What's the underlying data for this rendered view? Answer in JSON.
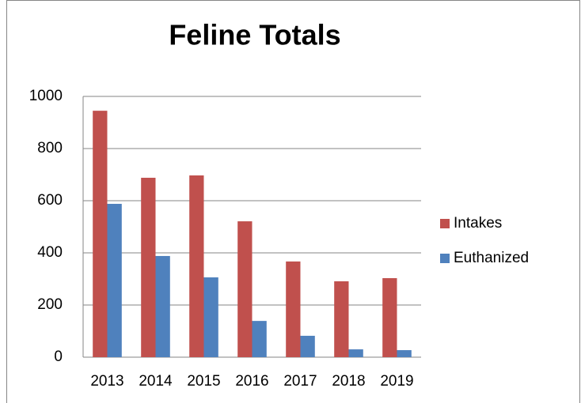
{
  "chart_data": {
    "type": "bar",
    "title": "Feline Totals",
    "categories": [
      "2013",
      "2014",
      "2015",
      "2016",
      "2017",
      "2018",
      "2019"
    ],
    "series": [
      {
        "name": "Intakes",
        "color": "#c0504d",
        "values": [
          945,
          688,
          697,
          521,
          367,
          291,
          303
        ]
      },
      {
        "name": "Euthanized",
        "color": "#4f81bd",
        "values": [
          588,
          388,
          306,
          139,
          82,
          30,
          27
        ]
      }
    ],
    "ylim": [
      0,
      1000
    ],
    "yticks": [
      0,
      200,
      400,
      600,
      800,
      1000
    ],
    "grid": true,
    "legend": "right"
  }
}
